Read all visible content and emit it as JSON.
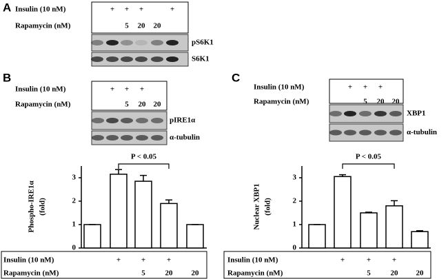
{
  "panels": [
    {
      "label": "A",
      "conditions": [
        {
          "name": "Insulin (10 nM)",
          "values": [
            null,
            "+",
            "+",
            "+",
            null,
            "+"
          ]
        },
        {
          "name": "Rapamycin (nM)",
          "values": [
            null,
            null,
            "5",
            "20",
            "20",
            null
          ]
        }
      ],
      "blot_labels": [
        "pS6K1",
        "S6K1"
      ]
    },
    {
      "label": "B",
      "conditions": [
        {
          "name": "Insulin (10 nM)",
          "values": [
            null,
            "+",
            "+",
            "+",
            null
          ]
        },
        {
          "name": "Rapamycin (nM)",
          "values": [
            null,
            null,
            "5",
            "20",
            "20"
          ]
        }
      ],
      "blot_labels": [
        "pIRE1α",
        "α-tubulin"
      ]
    },
    {
      "label": "C",
      "conditions": [
        {
          "name": "Insulin (10 nM)",
          "values": [
            null,
            "+",
            "+",
            "+",
            null
          ]
        },
        {
          "name": "Rapamycin (nM)",
          "values": [
            null,
            null,
            "5",
            "20",
            "20"
          ]
        }
      ],
      "blot_labels": [
        "XBP1",
        "α-tubulin"
      ]
    }
  ],
  "chart_data": [
    {
      "type": "bar",
      "ylabel": [
        "Phospho-IRE1α",
        "(fold)"
      ],
      "categories": [
        null,
        null,
        null,
        null,
        null
      ],
      "values": [
        1,
        3.15,
        2.85,
        1.9,
        1.0
      ],
      "errors": [
        0,
        0.2,
        0.25,
        0.15,
        0
      ],
      "color": "#ffffff",
      "ylim": [
        0,
        3.5
      ],
      "yticks": [
        0,
        1,
        2,
        3
      ],
      "annotation": "P < 0.05",
      "conditions": [
        {
          "name": "Insulin (10 nM)",
          "values": [
            null,
            "+",
            "+",
            "+",
            null
          ]
        },
        {
          "name": "Rapamycin (nM)",
          "values": [
            null,
            null,
            "5",
            "20",
            "20"
          ]
        }
      ]
    },
    {
      "type": "bar",
      "ylabel": [
        "Nuclear XBP1",
        "(fold)"
      ],
      "categories": [
        null,
        null,
        null,
        null,
        null
      ],
      "values": [
        1,
        3.05,
        1.5,
        1.8,
        0.7
      ],
      "errors": [
        0,
        0.08,
        0.03,
        0.22,
        0.04
      ],
      "color": "#ffffff",
      "ylim": [
        0,
        3.5
      ],
      "yticks": [
        0,
        1,
        2,
        3
      ],
      "annotation": "P < 0.05",
      "conditions": [
        {
          "name": "Insulin (10 nM)",
          "values": [
            null,
            "+",
            "+",
            "+",
            null
          ]
        },
        {
          "name": "Rapamycin (nM)",
          "values": [
            null,
            null,
            "5",
            "20",
            "20"
          ]
        }
      ]
    }
  ]
}
